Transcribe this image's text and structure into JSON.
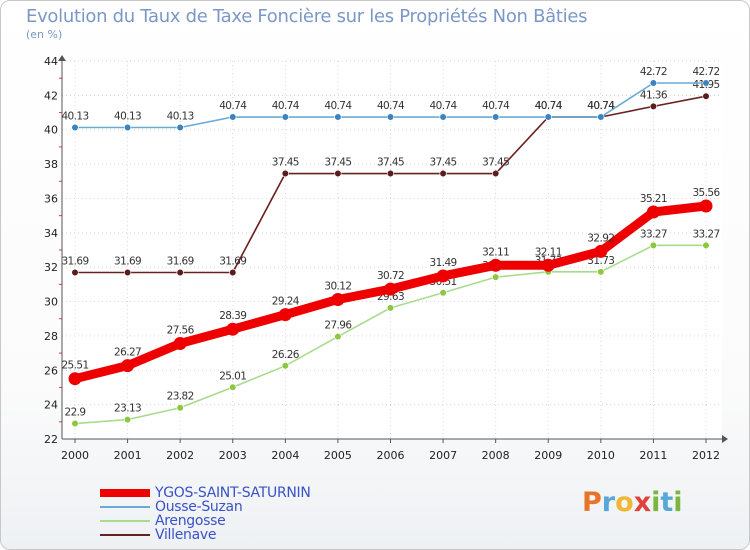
{
  "header": {
    "title": "Evolution du Taux de Taxe Foncière sur les Propriétés Non Bâties",
    "unit": "(en %)"
  },
  "logo": {
    "letters": [
      "P",
      "r",
      "o",
      "x",
      "i",
      "t",
      "i"
    ],
    "colors": [
      "#e8732a",
      "#59a7d9",
      "#f0b634",
      "#e0433c",
      "#7bb641",
      "#59a7d9",
      "#7bb641"
    ]
  },
  "chart_data": {
    "type": "line",
    "title": "Evolution du Taux de Taxe Foncière sur les Propriétés Non Bâties",
    "ylabel": "(en %)",
    "xlabel": "",
    "x": [
      "2000",
      "2001",
      "2002",
      "2003",
      "2004",
      "2005",
      "2006",
      "2007",
      "2008",
      "2009",
      "2010",
      "2011",
      "2012"
    ],
    "ylim": [
      22,
      44
    ],
    "yticks": [
      "22",
      "24",
      "26",
      "28",
      "30",
      "32",
      "34",
      "36",
      "38",
      "40",
      "42",
      "44"
    ],
    "grid": true,
    "series": [
      {
        "name": "Villenave",
        "color": "#6b2020",
        "marker": "#5a1c1c",
        "values": [
          31.69,
          31.69,
          31.69,
          31.69,
          37.45,
          37.45,
          37.45,
          37.45,
          37.45,
          40.74,
          40.74,
          41.36,
          41.95
        ],
        "labels": [
          "31.69",
          "31.69",
          "31.69",
          "31.69",
          "37.45",
          "37.45",
          "37.45",
          "37.45",
          "37.45",
          "40.74",
          "40.74",
          "41.36",
          "41.95"
        ]
      },
      {
        "name": "Ousse-Suzan",
        "color": "#6aaad8",
        "marker": "#3b83c0",
        "values": [
          40.13,
          40.13,
          40.13,
          40.74,
          40.74,
          40.74,
          40.74,
          40.74,
          40.74,
          40.74,
          40.74,
          42.72,
          42.72
        ],
        "labels": [
          "40.13",
          "40.13",
          "40.13",
          "40.74",
          "40.74",
          "40.74",
          "40.74",
          "40.74",
          "40.74",
          "40.74",
          "40.74",
          "42.72",
          "42.72"
        ]
      },
      {
        "name": "Arengosse",
        "color": "#a8dc8c",
        "marker": "#8dc63f",
        "values": [
          22.9,
          23.13,
          23.82,
          25.01,
          26.26,
          27.96,
          29.63,
          30.51,
          31.42,
          31.73,
          31.73,
          33.27,
          33.27
        ],
        "labels": [
          "22.9",
          "23.13",
          "23.82",
          "25.01",
          "26.26",
          "27.96",
          "29.63",
          "30.51",
          "31.42",
          "31.73",
          "31.73",
          "33.27",
          "33.27"
        ]
      },
      {
        "name": "YGOS-SAINT-SATURNIN",
        "color": "#ee0000",
        "marker": "#ee0000",
        "values": [
          25.51,
          26.27,
          27.56,
          28.39,
          29.24,
          30.12,
          30.72,
          31.49,
          32.11,
          32.11,
          32.92,
          35.21,
          35.56
        ],
        "labels": [
          "25.51",
          "26.27",
          "27.56",
          "28.39",
          "29.24",
          "30.12",
          "30.72",
          "31.49",
          "32.11",
          "32.11",
          "32.92",
          "35.21",
          "35.56"
        ]
      }
    ],
    "legend": [
      "YGOS-SAINT-SATURNIN",
      "Ousse-Suzan",
      "Arengosse",
      "Villenave"
    ],
    "legend_position": "bottom-left"
  }
}
